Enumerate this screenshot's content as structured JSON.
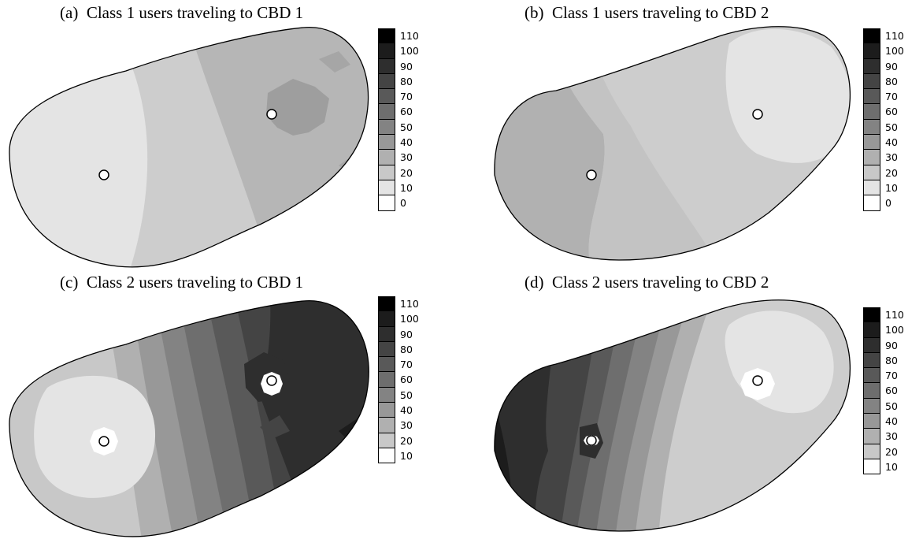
{
  "panels": [
    {
      "label": "(a)",
      "title": "Class 1 users traveling to CBD 1",
      "legend": [
        "110",
        "100",
        "90",
        "80",
        "70",
        "60",
        "50",
        "40",
        "30",
        "20",
        "10",
        "0"
      ],
      "legend_colors": [
        "#000000",
        "#1c1c1c",
        "#2e2e2e",
        "#444444",
        "#595959",
        "#6e6e6e",
        "#838383",
        "#989898",
        "#b0b0b0",
        "#c8c8c8",
        "#e4e4e4",
        "#ffffff"
      ]
    },
    {
      "label": "(b)",
      "title": "Class 1 users traveling to CBD 2",
      "legend": [
        "110",
        "100",
        "90",
        "80",
        "70",
        "60",
        "50",
        "40",
        "30",
        "20",
        "10",
        "0"
      ],
      "legend_colors": [
        "#000000",
        "#1c1c1c",
        "#2e2e2e",
        "#444444",
        "#595959",
        "#6e6e6e",
        "#838383",
        "#989898",
        "#b0b0b0",
        "#c8c8c8",
        "#e4e4e4",
        "#ffffff"
      ]
    },
    {
      "label": "(c)",
      "title": "Class 2 users traveling to CBD 1",
      "legend": [
        "110",
        "100",
        "90",
        "80",
        "70",
        "60",
        "50",
        "40",
        "30",
        "20",
        "10"
      ],
      "legend_colors": [
        "#000000",
        "#1c1c1c",
        "#2e2e2e",
        "#444444",
        "#595959",
        "#6e6e6e",
        "#838383",
        "#989898",
        "#b0b0b0",
        "#c8c8c8",
        "#ffffff"
      ]
    },
    {
      "label": "(d)",
      "title": "Class 2 users traveling to CBD 2",
      "legend": [
        "110",
        "100",
        "90",
        "80",
        "70",
        "60",
        "50",
        "40",
        "30",
        "20",
        "10"
      ],
      "legend_colors": [
        "#000000",
        "#1c1c1c",
        "#2e2e2e",
        "#444444",
        "#595959",
        "#6e6e6e",
        "#838383",
        "#989898",
        "#b0b0b0",
        "#c8c8c8",
        "#ffffff"
      ]
    }
  ]
}
